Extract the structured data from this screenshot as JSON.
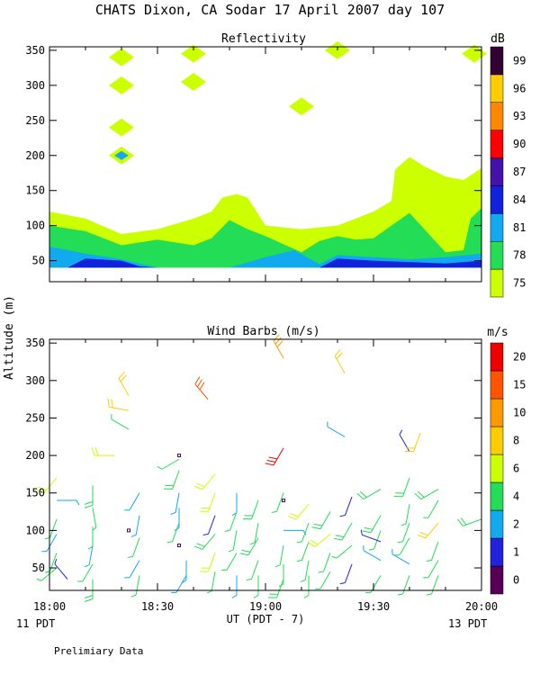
{
  "page_title": "CHATS Dixon, CA  Sodar  17 April 2007  day 107",
  "footer_note": "Prelimiary Data",
  "y_axis_label": "Altitude (m)",
  "x_axis_label": "UT  (PDT - 7)",
  "x_ticks": [
    "18:00",
    "18:30",
    "19:00",
    "19:30",
    "20:00"
  ],
  "x_left_note": "11 PDT",
  "x_right_note": "13 PDT",
  "chart_data": [
    {
      "type": "heatmap",
      "title": "Reflectivity",
      "colorbar_unit": "dB",
      "colorbar_levels": [
        75,
        78,
        81,
        84,
        87,
        90,
        93,
        96,
        99
      ],
      "colorbar_colors": [
        "#ccff00",
        "#22dd55",
        "#11aaee",
        "#1122dd",
        "#4411aa",
        "#ff0000",
        "#ff8800",
        "#ffcc00",
        "#330033"
      ],
      "ylim": [
        20,
        355
      ],
      "yticks": [
        50,
        100,
        150,
        200,
        250,
        300,
        350
      ],
      "xlim": [
        "18:00",
        "20:00"
      ],
      "layers": [
        {
          "level": 75,
          "top_profile": [
            [
              0,
              120
            ],
            [
              10,
              110
            ],
            [
              20,
              88
            ],
            [
              30,
              95
            ],
            [
              40,
              110
            ],
            [
              45,
              120
            ],
            [
              48,
              140
            ],
            [
              52,
              145
            ],
            [
              55,
              140
            ],
            [
              60,
              100
            ],
            [
              70,
              95
            ],
            [
              80,
              100
            ],
            [
              85,
              110
            ],
            [
              90,
              120
            ],
            [
              95,
              135
            ],
            [
              96,
              180
            ],
            [
              100,
              198
            ],
            [
              104,
              185
            ],
            [
              110,
              170
            ],
            [
              115,
              165
            ],
            [
              120,
              182
            ]
          ]
        },
        {
          "level": 78,
          "top_profile": [
            [
              0,
              100
            ],
            [
              10,
              92
            ],
            [
              20,
              72
            ],
            [
              30,
              80
            ],
            [
              40,
              72
            ],
            [
              45,
              82
            ],
            [
              50,
              108
            ],
            [
              55,
              95
            ],
            [
              60,
              85
            ],
            [
              70,
              62
            ],
            [
              75,
              78
            ],
            [
              80,
              85
            ],
            [
              85,
              80
            ],
            [
              90,
              82
            ],
            [
              95,
              100
            ],
            [
              100,
              118
            ],
            [
              105,
              90
            ],
            [
              110,
              62
            ],
            [
              115,
              65
            ],
            [
              117,
              110
            ],
            [
              120,
              125
            ]
          ]
        },
        {
          "level": 81,
          "top_profile": [
            [
              0,
              70
            ],
            [
              10,
              60
            ],
            [
              20,
              52
            ],
            [
              30,
              40
            ],
            [
              40,
              40
            ],
            [
              50,
              40
            ],
            [
              60,
              55
            ],
            [
              68,
              65
            ],
            [
              75,
              45
            ],
            [
              80,
              58
            ],
            [
              90,
              55
            ],
            [
              100,
              52
            ],
            [
              110,
              55
            ],
            [
              120,
              60
            ]
          ]
        },
        {
          "level": 84,
          "top_profile": [
            [
              0,
              40
            ],
            [
              5,
              40
            ],
            [
              10,
              53
            ],
            [
              20,
              50
            ],
            [
              25,
              42
            ],
            [
              30,
              40
            ],
            [
              75,
              40
            ],
            [
              80,
              53
            ],
            [
              90,
              50
            ],
            [
              100,
              48
            ],
            [
              110,
              46
            ],
            [
              120,
              50
            ]
          ]
        }
      ],
      "patches": [
        {
          "level": 75,
          "x": 20,
          "y": 340
        },
        {
          "level": 75,
          "x": 20,
          "y": 300
        },
        {
          "level": 75,
          "x": 20,
          "y": 240
        },
        {
          "level": 75,
          "x": 20,
          "y": 200
        },
        {
          "level": 81,
          "x": 20,
          "y": 200
        },
        {
          "level": 75,
          "x": 40,
          "y": 345
        },
        {
          "level": 75,
          "x": 40,
          "y": 305
        },
        {
          "level": 75,
          "x": 70,
          "y": 270
        },
        {
          "level": 75,
          "x": 80,
          "y": 350
        },
        {
          "level": 75,
          "x": 118,
          "y": 345
        }
      ]
    },
    {
      "type": "scatter",
      "title": "Wind Barbs (m/s)",
      "colorbar_unit": "m/s",
      "colorbar_levels": [
        0,
        1,
        2,
        4,
        6,
        8,
        10,
        15,
        20
      ],
      "colorbar_colors": [
        "#550055",
        "#2222dd",
        "#11aaee",
        "#22dd55",
        "#ccff00",
        "#ffcc00",
        "#ff9900",
        "#ff5500",
        "#ee0000"
      ],
      "ylim": [
        20,
        355
      ],
      "yticks": [
        50,
        100,
        150,
        200,
        250,
        300,
        350
      ],
      "xlim": [
        "18:00",
        "20:00"
      ],
      "barbs": [
        {
          "x": 2,
          "y": 170,
          "speed": 6,
          "dir": 220
        },
        {
          "x": 2,
          "y": 140,
          "speed": 3,
          "dir": 90
        },
        {
          "x": 2,
          "y": 115,
          "speed": 4,
          "dir": 200
        },
        {
          "x": 2,
          "y": 95,
          "speed": 3,
          "dir": 210
        },
        {
          "x": 2,
          "y": 70,
          "speed": 4,
          "dir": 200
        },
        {
          "x": 2,
          "y": 50,
          "speed": 4,
          "dir": 230
        },
        {
          "x": 5,
          "y": 35,
          "speed": 1.5,
          "dir": 320
        },
        {
          "x": 12,
          "y": 160,
          "speed": 5,
          "dir": 180
        },
        {
          "x": 12,
          "y": 130,
          "speed": 4,
          "dir": 170
        },
        {
          "x": 12,
          "y": 105,
          "speed": 4,
          "dir": 180
        },
        {
          "x": 12,
          "y": 80,
          "speed": 3,
          "dir": 190
        },
        {
          "x": 12,
          "y": 55,
          "speed": 4,
          "dir": 210
        },
        {
          "x": 12,
          "y": 35,
          "speed": 5,
          "dir": 180
        },
        {
          "x": 18,
          "y": 200,
          "speed": 7,
          "dir": 270
        },
        {
          "x": 22,
          "y": 280,
          "speed": 8,
          "dir": 330
        },
        {
          "x": 22,
          "y": 260,
          "speed": 8,
          "dir": 280
        },
        {
          "x": 22,
          "y": 235,
          "speed": 4,
          "dir": 300
        },
        {
          "x": 22,
          "y": 100,
          "speed": 0.5,
          "dir": 0
        },
        {
          "x": 25,
          "y": 150,
          "speed": 3,
          "dir": 210
        },
        {
          "x": 25,
          "y": 120,
          "speed": 3,
          "dir": 190
        },
        {
          "x": 25,
          "y": 90,
          "speed": 4,
          "dir": 200
        },
        {
          "x": 25,
          "y": 60,
          "speed": 3,
          "dir": 210
        },
        {
          "x": 25,
          "y": 40,
          "speed": 4,
          "dir": 190
        },
        {
          "x": 36,
          "y": 195,
          "speed": 4,
          "dir": 240
        },
        {
          "x": 36,
          "y": 180,
          "speed": 5,
          "dir": 200
        },
        {
          "x": 36,
          "y": 150,
          "speed": 3,
          "dir": 190
        },
        {
          "x": 36,
          "y": 130,
          "speed": 3,
          "dir": 180
        },
        {
          "x": 36,
          "y": 110,
          "speed": 4,
          "dir": 200
        },
        {
          "x": 36,
          "y": 80,
          "speed": 0.5,
          "dir": 0
        },
        {
          "x": 36,
          "y": 200,
          "speed": 0.5,
          "dir": 0
        },
        {
          "x": 38,
          "y": 60,
          "speed": 3,
          "dir": 180
        },
        {
          "x": 38,
          "y": 40,
          "speed": 3,
          "dir": 210
        },
        {
          "x": 44,
          "y": 275,
          "speed": 15,
          "dir": 320
        },
        {
          "x": 46,
          "y": 175,
          "speed": 7,
          "dir": 220
        },
        {
          "x": 46,
          "y": 150,
          "speed": 6,
          "dir": 200
        },
        {
          "x": 46,
          "y": 120,
          "speed": 1.5,
          "dir": 200
        },
        {
          "x": 46,
          "y": 95,
          "speed": 5,
          "dir": 220
        },
        {
          "x": 46,
          "y": 70,
          "speed": 6,
          "dir": 200
        },
        {
          "x": 46,
          "y": 45,
          "speed": 4,
          "dir": 190
        },
        {
          "x": 52,
          "y": 150,
          "speed": 3,
          "dir": 180
        },
        {
          "x": 52,
          "y": 125,
          "speed": 4,
          "dir": 200
        },
        {
          "x": 52,
          "y": 100,
          "speed": 4,
          "dir": 190
        },
        {
          "x": 52,
          "y": 70,
          "speed": 4,
          "dir": 210
        },
        {
          "x": 52,
          "y": 40,
          "speed": 3,
          "dir": 180
        },
        {
          "x": 58,
          "y": 140,
          "speed": 5,
          "dir": 200
        },
        {
          "x": 58,
          "y": 110,
          "speed": 4,
          "dir": 190
        },
        {
          "x": 58,
          "y": 90,
          "speed": 5,
          "dir": 210
        },
        {
          "x": 58,
          "y": 60,
          "speed": 4,
          "dir": 200
        },
        {
          "x": 58,
          "y": 40,
          "speed": 4,
          "dir": 180
        },
        {
          "x": 65,
          "y": 330,
          "speed": 10,
          "dir": 330
        },
        {
          "x": 65,
          "y": 210,
          "speed": 20,
          "dir": 210
        },
        {
          "x": 65,
          "y": 150,
          "speed": 4,
          "dir": 200
        },
        {
          "x": 65,
          "y": 140,
          "speed": 0.5,
          "dir": 0
        },
        {
          "x": 65,
          "y": 100,
          "speed": 3,
          "dir": 90
        },
        {
          "x": 65,
          "y": 80,
          "speed": 4,
          "dir": 190
        },
        {
          "x": 65,
          "y": 55,
          "speed": 4,
          "dir": 180
        },
        {
          "x": 65,
          "y": 35,
          "speed": 5,
          "dir": 200
        },
        {
          "x": 72,
          "y": 135,
          "speed": 6,
          "dir": 220
        },
        {
          "x": 72,
          "y": 110,
          "speed": 4,
          "dir": 200
        },
        {
          "x": 72,
          "y": 85,
          "speed": 4,
          "dir": 200
        },
        {
          "x": 72,
          "y": 60,
          "speed": 4,
          "dir": 190
        },
        {
          "x": 72,
          "y": 40,
          "speed": 4,
          "dir": 180
        },
        {
          "x": 78,
          "y": 125,
          "speed": 5,
          "dir": 210
        },
        {
          "x": 78,
          "y": 95,
          "speed": 6,
          "dir": 230
        },
        {
          "x": 78,
          "y": 70,
          "speed": 4,
          "dir": 200
        },
        {
          "x": 78,
          "y": 45,
          "speed": 4,
          "dir": 210
        },
        {
          "x": 82,
          "y": 310,
          "speed": 9,
          "dir": 330
        },
        {
          "x": 82,
          "y": 225,
          "speed": 3,
          "dir": 300
        },
        {
          "x": 84,
          "y": 145,
          "speed": 1.5,
          "dir": 200
        },
        {
          "x": 84,
          "y": 110,
          "speed": 5,
          "dir": 210
        },
        {
          "x": 84,
          "y": 80,
          "speed": 4,
          "dir": 230
        },
        {
          "x": 84,
          "y": 55,
          "speed": 1.5,
          "dir": 200
        },
        {
          "x": 92,
          "y": 155,
          "speed": 5,
          "dir": 240
        },
        {
          "x": 92,
          "y": 120,
          "speed": 5,
          "dir": 210
        },
        {
          "x": 92,
          "y": 100,
          "speed": 4,
          "dir": 200
        },
        {
          "x": 92,
          "y": 85,
          "speed": 1.5,
          "dir": 290
        },
        {
          "x": 92,
          "y": 60,
          "speed": 2,
          "dir": 300
        },
        {
          "x": 92,
          "y": 40,
          "speed": 4,
          "dir": 210
        },
        {
          "x": 100,
          "y": 205,
          "speed": 1.5,
          "dir": 330
        },
        {
          "x": 100,
          "y": 170,
          "speed": 5,
          "dir": 200
        },
        {
          "x": 100,
          "y": 135,
          "speed": 4,
          "dir": 190
        },
        {
          "x": 100,
          "y": 110,
          "speed": 4,
          "dir": 200
        },
        {
          "x": 100,
          "y": 90,
          "speed": 4,
          "dir": 210
        },
        {
          "x": 100,
          "y": 55,
          "speed": 2,
          "dir": 300
        },
        {
          "x": 100,
          "y": 40,
          "speed": 4,
          "dir": 200
        },
        {
          "x": 103,
          "y": 230,
          "speed": 8,
          "dir": 200
        },
        {
          "x": 108,
          "y": 155,
          "speed": 5,
          "dir": 240
        },
        {
          "x": 108,
          "y": 140,
          "speed": 4,
          "dir": 210
        },
        {
          "x": 108,
          "y": 110,
          "speed": 8,
          "dir": 220
        },
        {
          "x": 108,
          "y": 85,
          "speed": 4,
          "dir": 200
        },
        {
          "x": 108,
          "y": 60,
          "speed": 4,
          "dir": 210
        },
        {
          "x": 108,
          "y": 40,
          "speed": 4,
          "dir": 200
        },
        {
          "x": 120,
          "y": 115,
          "speed": 5,
          "dir": 250
        }
      ]
    }
  ]
}
